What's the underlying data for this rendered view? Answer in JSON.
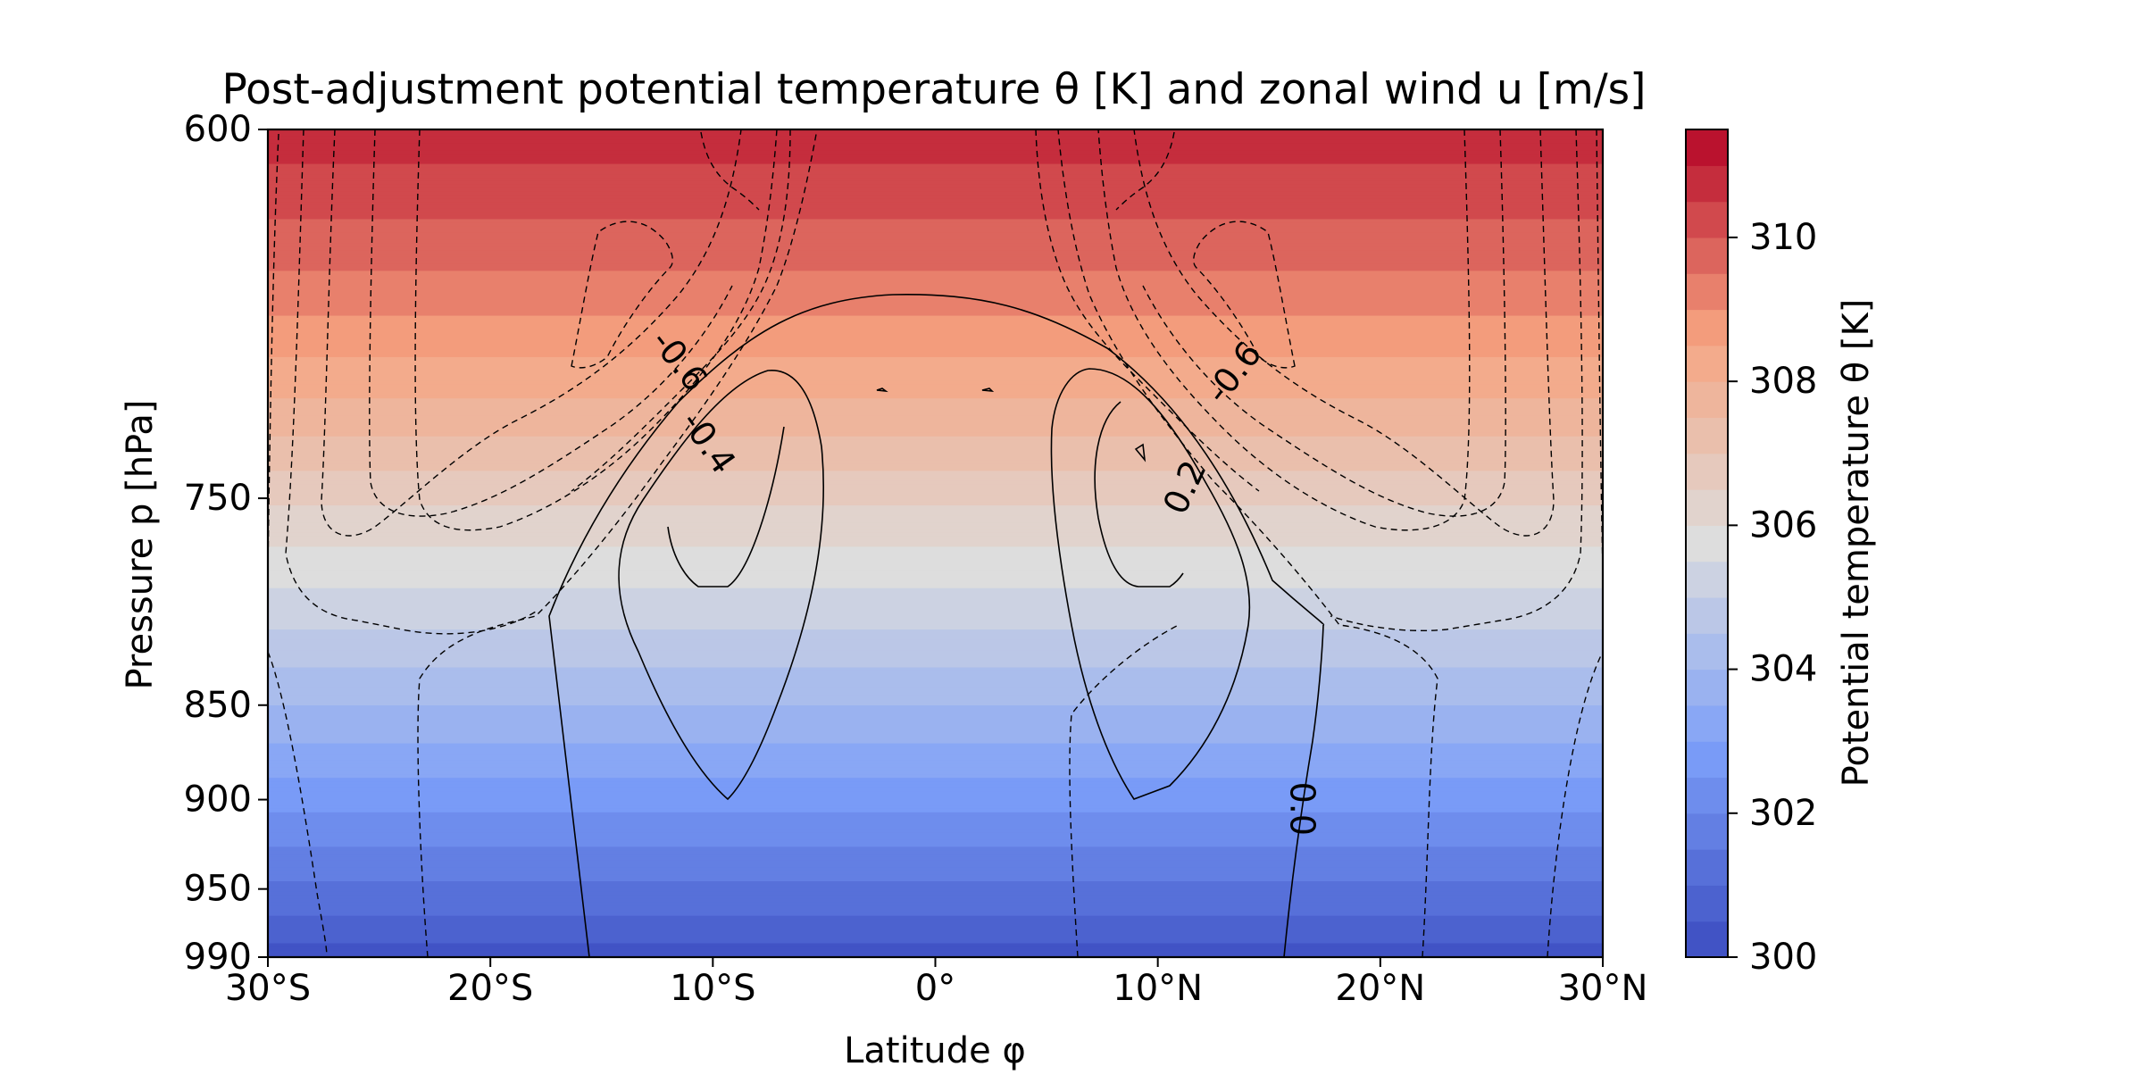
{
  "chart_data": {
    "type": "heatmap",
    "title": "Post-adjustment potential temperature θ [K] and zonal wind u [m/s]",
    "xlabel": "Latitude φ",
    "ylabel": "Pressure p [hPa]",
    "x_ticks": [
      "30°S",
      "20°S",
      "10°S",
      "0°",
      "10°N",
      "20°N",
      "30°N"
    ],
    "x_tick_values": [
      -30,
      -20,
      -10,
      0,
      10,
      20,
      30
    ],
    "xlim": [
      -30,
      30
    ],
    "y_ticks": [
      "600",
      "750",
      "850",
      "900",
      "950",
      "990"
    ],
    "y_tick_values": [
      600,
      750,
      850,
      900,
      950,
      990
    ],
    "ylim": [
      990,
      600
    ],
    "yscale": "log",
    "colorbar": {
      "label": "Potential temperature θ [K]",
      "ticks": [
        "300",
        "302",
        "304",
        "306",
        "308",
        "310"
      ],
      "tick_values": [
        300,
        302,
        304,
        306,
        308,
        310
      ],
      "range": [
        300,
        311.5
      ],
      "colormap": "coolwarm",
      "levels": 23
    },
    "theta_field": {
      "pressure_hPa": [
        600,
        650,
        700,
        750,
        800,
        850,
        900,
        950,
        990
      ],
      "theta_K": [
        310.8,
        309.6,
        308.2,
        306.6,
        305.3,
        304.0,
        302.7,
        301.4,
        300.3
      ]
    },
    "contour_labels": [
      {
        "text": "-0.6",
        "lat": -11.5,
        "p": 690,
        "rotation": 52
      },
      {
        "text": "-0.4",
        "lat": -10.2,
        "p": 725,
        "rotation": 55
      },
      {
        "text": "-0.6",
        "lat": 13.4,
        "p": 695,
        "rotation": -52
      },
      {
        "text": "0.2",
        "lat": 11.2,
        "p": 745,
        "rotation": -65
      },
      {
        "text": "0.0",
        "lat": 16.5,
        "p": 905,
        "rotation": 90
      }
    ],
    "grid": false,
    "legend": "none"
  }
}
